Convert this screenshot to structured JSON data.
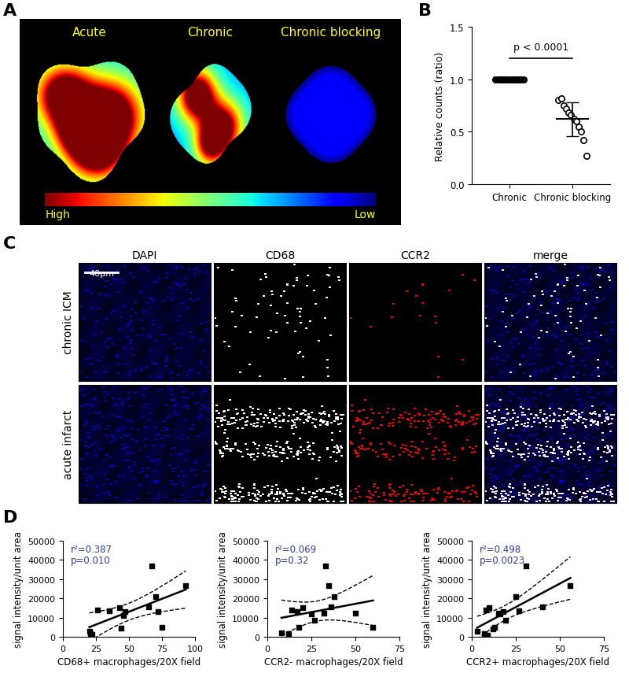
{
  "panel_labels": [
    "A",
    "B",
    "C",
    "D"
  ],
  "panel_a": {
    "images": [
      "Acute",
      "Chronic",
      "Chronic blocking"
    ],
    "color_scale": {
      "high": "High",
      "low": "Low"
    }
  },
  "panel_c": {
    "columns": [
      "DAPI",
      "CD68",
      "CCR2",
      "merge"
    ],
    "rows": [
      "chronic ICM",
      "acute infarct"
    ],
    "scale_bar": "40μm"
  },
  "chart_data": [
    {
      "type": "scatter",
      "ylabel": "Relative counts (ratio)",
      "categories": [
        "Chronic",
        "Chronic blocking"
      ],
      "groups": [
        {
          "values": [
            1.0,
            1.0,
            1.0,
            1.0,
            1.0,
            1.0,
            1.0,
            1.0,
            1.0,
            1.0,
            1.0,
            1.0
          ],
          "marker": "filled",
          "color": "#000000"
        },
        {
          "values": [
            0.8,
            0.82,
            0.75,
            0.72,
            0.68,
            0.66,
            0.62,
            0.6,
            0.55,
            0.5,
            0.42,
            0.27
          ],
          "marker": "open",
          "color": "#000000",
          "mean": 0.62,
          "sd": 0.16
        }
      ],
      "annotations": [
        "p < 0.0001"
      ],
      "ylim": [
        0.0,
        1.5
      ],
      "yticks": [
        0.0,
        0.5,
        1.0,
        1.5
      ]
    },
    {
      "type": "scatter",
      "xlabel": "CD68+ macrophages/20X field",
      "ylabel": "signal intensity/unit area",
      "x": [
        20,
        21,
        22,
        26,
        35,
        43,
        44,
        46,
        47,
        65,
        67,
        70,
        72,
        75,
        93
      ],
      "values": [
        2800,
        1800,
        1200,
        14000,
        13500,
        15000,
        4500,
        11000,
        13000,
        15500,
        37000,
        21000,
        13000,
        5000,
        26500
      ],
      "annotations": [
        "r²=0.387",
        "p=0.010"
      ],
      "marker": "square",
      "color": "#000000",
      "xlim": [
        0,
        100
      ],
      "xticks": [
        0,
        25,
        50,
        75,
        100
      ],
      "ylim": [
        0,
        50000
      ],
      "yticks": [
        0,
        10000,
        20000,
        30000,
        40000,
        50000
      ]
    },
    {
      "type": "scatter",
      "xlabel": "CCR2- macrophages/20X field",
      "ylabel": "signal intensity/unit area",
      "x": [
        8,
        12,
        14,
        17,
        18,
        20,
        25,
        27,
        32,
        33,
        35,
        36,
        38,
        50,
        60
      ],
      "values": [
        2000,
        1500,
        14000,
        13000,
        5000,
        15000,
        12000,
        8500,
        12500,
        37000,
        26500,
        15500,
        21000,
        12500,
        5000
      ],
      "annotations": [
        "r²=0.069",
        "p=0.32"
      ],
      "marker": "square",
      "color": "#000000",
      "xlim": [
        0,
        75
      ],
      "xticks": [
        0,
        25,
        50,
        75
      ],
      "ylim": [
        0,
        50000
      ],
      "yticks": [
        0,
        10000,
        20000,
        30000,
        40000,
        50000
      ]
    },
    {
      "type": "scatter",
      "xlabel": "CCR2+ macrophages/20X field",
      "ylabel": "signal intensity/unit area",
      "x": [
        3,
        7,
        8,
        9,
        10,
        12,
        13,
        15,
        16,
        18,
        19,
        25,
        27,
        31,
        40,
        56
      ],
      "values": [
        2800,
        1500,
        14000,
        1000,
        15000,
        4000,
        5000,
        12500,
        12000,
        13000,
        8500,
        21000,
        13500,
        37000,
        15500,
        26500
      ],
      "annotations": [
        "r²=0.498",
        "p=0.0023"
      ],
      "marker": "square",
      "color": "#000000",
      "xlim": [
        0,
        75
      ],
      "xticks": [
        0,
        25,
        50,
        75
      ],
      "ylim": [
        0,
        50000
      ],
      "yticks": [
        0,
        10000,
        20000,
        30000,
        40000,
        50000
      ]
    }
  ]
}
